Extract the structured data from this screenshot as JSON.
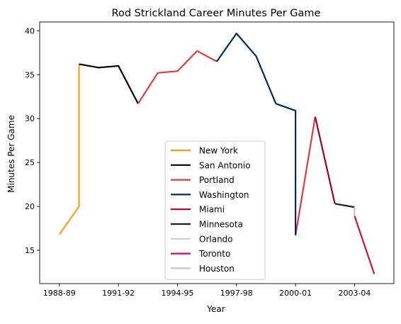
{
  "chart_data": {
    "type": "line",
    "title": "Rod Strickland Career Minutes Per Game",
    "xlabel": "Year",
    "ylabel": "Minutes Per Game",
    "xlim": [
      -1,
      17
    ],
    "ylim": [
      11.2,
      41.0
    ],
    "x_ticks": [
      {
        "pos": 0,
        "label": "1988-89"
      },
      {
        "pos": 3,
        "label": "1991-92"
      },
      {
        "pos": 6,
        "label": "1994-95"
      },
      {
        "pos": 9,
        "label": "1997-98"
      },
      {
        "pos": 12,
        "label": "2000-01"
      },
      {
        "pos": 15,
        "label": "2003-04"
      }
    ],
    "y_ticks": [
      15,
      20,
      25,
      30,
      35,
      40
    ],
    "grid": false,
    "legend_position": "lower-center",
    "series": [
      {
        "name": "New York",
        "color": "#f5a01a",
        "points": [
          [
            0,
            16.8
          ],
          [
            1,
            20.0
          ],
          [
            1,
            36.2
          ]
        ]
      },
      {
        "name": "San Antonio",
        "color": "#000000",
        "points": [
          [
            1,
            36.2
          ],
          [
            2,
            35.8
          ],
          [
            3,
            36.0
          ],
          [
            4,
            31.7
          ]
        ]
      },
      {
        "name": "Portland",
        "color": "#e03a3e",
        "points": [
          [
            4,
            31.7
          ],
          [
            5,
            35.2
          ],
          [
            6,
            35.4
          ],
          [
            7,
            37.7
          ],
          [
            8,
            36.5
          ]
        ]
      },
      {
        "name": "Washington",
        "color": "#002b5c",
        "points": [
          [
            8,
            36.5
          ],
          [
            9,
            39.7
          ],
          [
            10,
            37.1
          ],
          [
            11,
            31.7
          ],
          [
            12,
            30.9
          ],
          [
            12,
            16.7
          ]
        ]
      },
      {
        "name": "Miami",
        "color": "#98002e",
        "points": [
          [
            13,
            30.2
          ],
          [
            14,
            20.3
          ]
        ]
      },
      {
        "name": "Minnesota",
        "color": "#0c2340",
        "points": [
          [
            14,
            20.3
          ],
          [
            15,
            19.9
          ]
        ]
      },
      {
        "name": "Orlando",
        "color": "#c4ced4",
        "points": [
          [
            15,
            19.9
          ],
          [
            15,
            18.9
          ]
        ]
      },
      {
        "name": "Toronto",
        "color": "#ce1141",
        "points": [
          [
            15,
            18.9
          ],
          [
            16,
            12.3
          ]
        ]
      },
      {
        "name": "Houston",
        "color": "#c4c4c4",
        "points": [
          [
            15,
            19.9
          ],
          [
            15,
            18.9
          ]
        ]
      }
    ],
    "connectors": [
      {
        "color": "#e03a3e",
        "points": [
          [
            12,
            16.7
          ],
          [
            13,
            30.2
          ]
        ]
      }
    ]
  }
}
